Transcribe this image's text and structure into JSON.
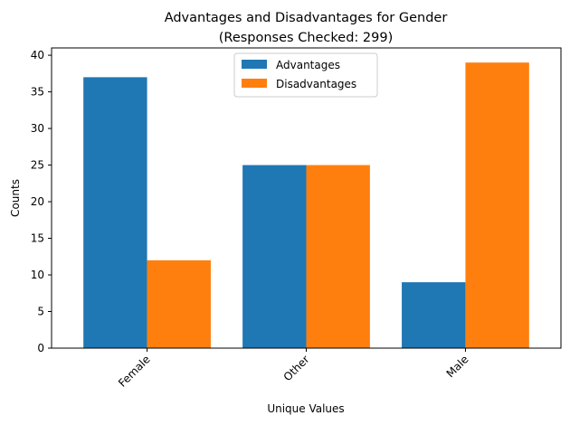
{
  "chart_data": {
    "type": "bar",
    "title": "Advantages and Disadvantages for Gender",
    "subtitle": "(Responses Checked: 299)",
    "xlabel": "Unique Values",
    "ylabel": "Counts",
    "categories": [
      "Female",
      "Other",
      "Male"
    ],
    "series": [
      {
        "name": "Advantages",
        "color": "#1f77b4",
        "values": [
          37,
          25,
          9
        ]
      },
      {
        "name": "Disadvantages",
        "color": "#ff7f0e",
        "values": [
          12,
          25,
          39
        ]
      }
    ],
    "ylim": [
      0,
      41
    ],
    "yticks": [
      0,
      5,
      10,
      15,
      20,
      25,
      30,
      35,
      40
    ],
    "x_tick_rotation": 45,
    "grid": false,
    "legend_position": "top-center"
  }
}
